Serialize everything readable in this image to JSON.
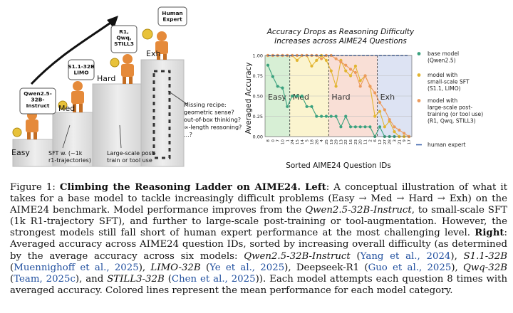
{
  "illustration": {
    "arrow_label": "",
    "steps": [
      {
        "name": "Easy",
        "model": "Qwen2.5-\n32B-\nInstruct"
      },
      {
        "name": "Med",
        "model": "S1.1-32B\nLIMO"
      },
      {
        "name": "Hard",
        "model": "R1,\nQwq,\nSTILL3"
      },
      {
        "name": "Exh",
        "model": "Human\nExpert"
      }
    ],
    "annotations": {
      "sft": "SFT w. (~1k\nr1-trajectories)",
      "post": "Large-scale post-\ntrain or tool use",
      "missing": "Missing recipe:\ngeometric sense?\nout-of-box thinking?\n∞-length reasoning?\n...?"
    }
  },
  "chart_data": {
    "type": "line",
    "title": "Accuracy Drops as Reasoning Difficulty\nIncreases across AIME24 Questions",
    "xlabel": "Sorted AIME24 Question IDs",
    "ylabel": "Averaged Accuracy",
    "ylim": [
      0,
      1
    ],
    "yticks": [
      "0.00",
      "0.25",
      "0.50",
      "0.75",
      "1.00"
    ],
    "categories": [
      "8",
      "0",
      "7",
      "10",
      "1",
      "24",
      "15",
      "14",
      "5",
      "18",
      "26",
      "4",
      "25",
      "19",
      "29",
      "13",
      "22",
      "16",
      "23",
      "20",
      "11",
      "2",
      "6",
      "12",
      "27",
      "28",
      "3",
      "21",
      "9",
      "17"
    ],
    "regions": [
      {
        "label": "Easy",
        "start": 0,
        "end": 5,
        "color": "#d7efd5"
      },
      {
        "label": "Med",
        "start": 5,
        "end": 13,
        "color": "#fbf4cf"
      },
      {
        "label": "Hard",
        "start": 13,
        "end": 23,
        "color": "#f9dfd6"
      },
      {
        "label": "Exh",
        "start": 23,
        "end": 29,
        "color": "#dde3f3"
      }
    ],
    "series": [
      {
        "name": "base model\n(Qwen2.5)",
        "color": "#3aa17e",
        "values": [
          0.88,
          0.74,
          0.62,
          0.6,
          0.37,
          0.5,
          0.5,
          0.5,
          0.37,
          0.37,
          0.25,
          0.25,
          0.25,
          0.25,
          0.25,
          0.12,
          0.25,
          0.12,
          0.12,
          0.12,
          0.12,
          0.12,
          0.0,
          0.12,
          0.0,
          0.0,
          0.0,
          0.0,
          0.0,
          0.0
        ]
      },
      {
        "name": "model with\nsmall-scale SFT\n(S1.1, LIMO)",
        "color": "#e2b531",
        "values": [
          1.0,
          1.0,
          1.0,
          1.0,
          1.0,
          1.0,
          0.94,
          1.0,
          1.0,
          0.87,
          0.94,
          1.0,
          0.94,
          0.81,
          0.62,
          0.94,
          0.81,
          0.75,
          0.87,
          0.69,
          0.75,
          0.62,
          0.25,
          0.31,
          0.12,
          0.19,
          0.06,
          0.0,
          0.0,
          0.0
        ]
      },
      {
        "name": "model with\nlarge-scale post-\ntraining (or tool use)\n(R1, Qwq, STILL3)",
        "color": "#ec9a5c",
        "values": [
          1.0,
          1.0,
          1.0,
          1.0,
          1.0,
          1.0,
          1.0,
          1.0,
          1.0,
          1.0,
          1.0,
          0.96,
          1.0,
          1.0,
          0.96,
          0.92,
          0.88,
          0.83,
          0.79,
          0.62,
          0.75,
          0.62,
          0.54,
          0.42,
          0.33,
          0.21,
          0.12,
          0.08,
          0.04,
          0.0
        ]
      },
      {
        "name": "human expert",
        "color": "#3b62ad",
        "values": [
          1.0,
          1.0,
          1.0,
          1.0,
          1.0,
          1.0,
          1.0,
          1.0,
          1.0,
          1.0,
          1.0,
          1.0,
          1.0,
          1.0,
          1.0,
          1.0,
          1.0,
          1.0,
          1.0,
          1.0,
          1.0,
          1.0,
          1.0,
          1.0,
          1.0,
          1.0,
          1.0,
          1.0,
          1.0,
          1.0
        ]
      }
    ],
    "legend_position": "right"
  },
  "caption": {
    "label": "Figure 1:",
    "title": "Climbing the Reasoning Ladder on AIME24.",
    "left": "Left",
    "p1": ": A conceptual illustration of what it takes for a base model to tackle increasingly difficult problems (Easy → Med → Hard → Exh) on the AIME24 benchmark. Model performance improves from the ",
    "m_qwen": "Qwen2.5-32B-Instruct",
    "p2": ", to small-scale SFT (1k R1-trajectory SFT), and further to large-scale post-training or tool-augmentation. However, the strongest models still fall short of human expert performance at the most challenging level. ",
    "right": "Right",
    "p3": ": Averaged accuracy across AIME24 question IDs, sorted by increasing overall difficulty (as determined by the average accuracy across six models: ",
    "c1_model": "Qwen2.5-32B-Instruct",
    "c1_cite": "Yang et al., 2024",
    "c2_model": "S1.1-32B",
    "c2_cite": "Muennighoff et al., 2025",
    "c3_model": "LIMO-32B",
    "c3_cite": "Ye et al., 2025",
    "c4_model": "Deepseek-R1",
    "c4_cite": "Guo et al., 2025",
    "c5_model": "Qwq-32B",
    "c5_cite": "Team, 2025c",
    "c6_model": "STILL3-32B",
    "c6_cite": "Chen et al., 2025",
    "p4": "Each model attempts each question 8 times with averaged accuracy. Colored lines represent the mean performance for each model category."
  }
}
